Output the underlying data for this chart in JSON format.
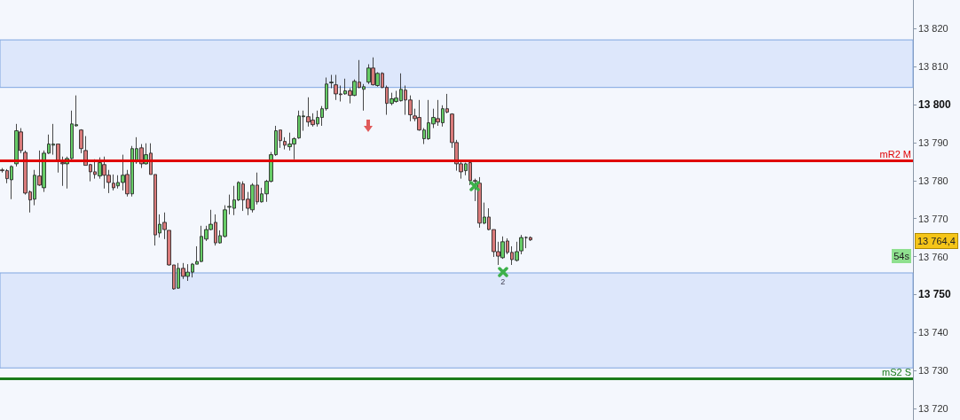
{
  "chart_data": {
    "type": "candlestick",
    "categories": [
      null,
      null,
      null,
      null,
      null,
      null,
      null,
      null,
      null,
      null,
      null,
      null,
      null,
      null,
      null,
      null,
      null,
      null,
      null,
      null,
      null,
      null,
      null,
      null,
      null,
      null,
      null,
      null,
      null,
      null,
      null,
      null,
      null,
      null,
      null,
      null,
      null,
      null,
      null,
      null,
      null,
      null,
      null,
      null,
      null,
      null,
      null,
      null,
      null,
      null,
      null,
      null,
      null,
      null,
      null,
      null,
      null,
      null,
      null,
      null,
      null,
      null,
      null,
      null,
      null,
      null,
      null,
      null,
      null,
      null,
      null,
      null,
      null,
      null,
      null,
      null,
      null,
      null,
      null,
      null,
      null,
      null,
      null,
      null,
      null,
      null,
      null,
      null,
      null,
      null,
      null,
      null,
      null,
      null,
      null,
      null,
      null,
      null,
      null,
      null,
      null,
      null,
      null,
      null,
      null,
      null,
      null,
      null,
      null,
      null,
      null,
      null,
      null,
      null,
      null,
      null,
      null,
      null,
      null,
      null,
      null,
      null,
      null,
      null,
      null,
      null,
      null,
      null,
      null,
      null,
      null,
      null,
      null,
      null,
      null,
      null,
      null,
      null,
      null,
      null,
      null,
      null,
      null,
      null,
      null,
      null,
      null,
      null,
      null,
      null,
      null,
      null,
      null,
      null,
      null,
      null,
      null,
      null,
      null,
      null,
      null,
      null,
      null,
      null,
      null,
      null,
      null,
      null,
      null,
      null,
      null,
      null,
      null,
      null,
      null,
      null,
      null,
      null,
      null,
      null,
      null,
      null,
      null,
      null,
      null,
      null,
      null,
      null,
      null,
      null,
      null,
      null,
      null,
      null,
      null,
      null,
      null
    ],
    "ohlc": [
      [
        13782.8,
        13783.3,
        13782.1,
        13782.6
      ],
      [
        13782.6,
        13783.0,
        13779.3,
        13780.5
      ],
      [
        13780.2,
        13784.0,
        13775.1,
        13783.7
      ],
      [
        13784.4,
        13794.9,
        13783.7,
        13793.1
      ],
      [
        13792.8,
        13793.8,
        13787.2,
        13787.9
      ],
      [
        13787.4,
        13787.9,
        13776.3,
        13776.7
      ],
      [
        13777.0,
        13777.4,
        13771.6,
        13774.9
      ],
      [
        13775.1,
        13782.8,
        13773.5,
        13781.4
      ],
      [
        13781.2,
        13787.9,
        13778.6,
        13778.8
      ],
      [
        13778.1,
        13787.9,
        13777.0,
        13787.2
      ],
      [
        13787.2,
        13792.1,
        13787.0,
        13789.6
      ],
      [
        13789.3,
        13794.9,
        13786.8,
        13789.6
      ],
      [
        13789.6,
        13789.6,
        13782.1,
        13785.1
      ],
      [
        13784.7,
        13786.3,
        13778.6,
        13784.4
      ],
      [
        13784.4,
        13786.3,
        13777.9,
        13785.8
      ],
      [
        13785.8,
        13798.4,
        13785.6,
        13794.9
      ],
      [
        13794.4,
        13802.4,
        13794.2,
        13794.7
      ],
      [
        13793.3,
        13793.5,
        13787.2,
        13788.4
      ],
      [
        13787.9,
        13791.7,
        13784.0,
        13784.0
      ],
      [
        13784.2,
        13784.4,
        13779.8,
        13782.3
      ],
      [
        13782.3,
        13785.6,
        13780.5,
        13781.6
      ],
      [
        13781.2,
        13786.1,
        13780.5,
        13784.7
      ],
      [
        13784.2,
        13786.3,
        13777.9,
        13781.4
      ],
      [
        13781.4,
        13782.8,
        13776.7,
        13779.5
      ],
      [
        13779.3,
        13781.6,
        13777.4,
        13778.1
      ],
      [
        13778.6,
        13781.4,
        13777.9,
        13779.5
      ],
      [
        13779.5,
        13786.8,
        13777.4,
        13781.4
      ],
      [
        13781.6,
        13782.8,
        13775.8,
        13776.5
      ],
      [
        13776.5,
        13789.1,
        13775.8,
        13788.4
      ],
      [
        13784.9,
        13791.4,
        13784.4,
        13788.4
      ],
      [
        13788.6,
        13789.6,
        13783.3,
        13784.4
      ],
      [
        13784.4,
        13789.8,
        13784.2,
        13786.8
      ],
      [
        13787.2,
        13789.8,
        13781.6,
        13781.6
      ],
      [
        13781.6,
        13781.6,
        13762.9,
        13765.7
      ],
      [
        13766.2,
        13771.1,
        13765.0,
        13768.5
      ],
      [
        13769.0,
        13771.6,
        13764.6,
        13767.1
      ],
      [
        13766.9,
        13766.9,
        13757.6,
        13757.8
      ],
      [
        13757.8,
        13757.8,
        13751.3,
        13751.5
      ],
      [
        13751.7,
        13758.3,
        13751.5,
        13756.9
      ],
      [
        13756.9,
        13758.3,
        13754.1,
        13754.8
      ],
      [
        13754.8,
        13758.0,
        13753.6,
        13755.9
      ],
      [
        13755.9,
        13758.3,
        13754.5,
        13758.0
      ],
      [
        13758.0,
        13762.7,
        13758.0,
        13758.7
      ],
      [
        13758.7,
        13768.1,
        13758.5,
        13765.3
      ],
      [
        13764.6,
        13768.1,
        13764.1,
        13767.1
      ],
      [
        13767.1,
        13772.3,
        13766.9,
        13768.5
      ],
      [
        13769.0,
        13771.1,
        13762.9,
        13763.6
      ],
      [
        13763.6,
        13766.9,
        13763.4,
        13765.5
      ],
      [
        13765.3,
        13773.5,
        13765.0,
        13772.3
      ],
      [
        13773.0,
        13776.3,
        13771.1,
        13773.2
      ],
      [
        13772.7,
        13778.6,
        13770.9,
        13774.9
      ],
      [
        13774.9,
        13779.8,
        13774.6,
        13779.5
      ],
      [
        13779.1,
        13779.8,
        13772.0,
        13774.9
      ],
      [
        13775.1,
        13777.0,
        13770.9,
        13772.7
      ],
      [
        13772.3,
        13779.3,
        13771.6,
        13778.8
      ],
      [
        13778.8,
        13782.1,
        13773.7,
        13774.4
      ],
      [
        13774.4,
        13778.1,
        13774.2,
        13776.5
      ],
      [
        13776.5,
        13780.2,
        13774.4,
        13779.8
      ],
      [
        13779.8,
        13787.5,
        13779.5,
        13786.8
      ],
      [
        13786.8,
        13794.4,
        13786.5,
        13793.1
      ],
      [
        13793.3,
        13793.3,
        13788.6,
        13790.5
      ],
      [
        13790.3,
        13791.4,
        13788.2,
        13789.3
      ],
      [
        13788.9,
        13792.6,
        13787.9,
        13789.6
      ],
      [
        13789.6,
        13791.4,
        13785.6,
        13791.0
      ],
      [
        13791.2,
        13798.4,
        13791.0,
        13797.0
      ],
      [
        13796.8,
        13798.4,
        13793.1,
        13797.0
      ],
      [
        13796.8,
        13801.9,
        13794.2,
        13795.4
      ],
      [
        13795.9,
        13797.7,
        13794.2,
        13794.7
      ],
      [
        13794.9,
        13798.4,
        13794.2,
        13796.6
      ],
      [
        13796.6,
        13799.6,
        13794.4,
        13798.9
      ],
      [
        13798.9,
        13807.1,
        13798.4,
        13805.4
      ],
      [
        13805.7,
        13807.8,
        13804.3,
        13805.9
      ],
      [
        13805.2,
        13807.8,
        13801.2,
        13802.8
      ],
      [
        13802.8,
        13805.0,
        13800.8,
        13802.6
      ],
      [
        13802.8,
        13806.8,
        13802.6,
        13803.6
      ],
      [
        13803.6,
        13804.3,
        13800.3,
        13802.4
      ],
      [
        13802.4,
        13806.6,
        13802.2,
        13806.1
      ],
      [
        13805.9,
        13811.7,
        13804.3,
        13804.5
      ],
      [
        13804.0,
        13805.4,
        13798.4,
        13804.7
      ],
      [
        13805.9,
        13810.6,
        13805.4,
        13809.6
      ],
      [
        13809.6,
        13812.4,
        13805.0,
        13805.2
      ],
      [
        13805.0,
        13808.5,
        13804.7,
        13808.2
      ],
      [
        13808.2,
        13808.5,
        13804.3,
        13804.5
      ],
      [
        13804.5,
        13805.0,
        13797.3,
        13800.3
      ],
      [
        13800.3,
        13803.1,
        13799.8,
        13801.5
      ],
      [
        13800.8,
        13803.6,
        13800.5,
        13801.7
      ],
      [
        13801.0,
        13808.2,
        13800.8,
        13804.0
      ],
      [
        13803.8,
        13805.0,
        13797.3,
        13801.2
      ],
      [
        13801.2,
        13802.4,
        13795.6,
        13797.3
      ],
      [
        13797.0,
        13798.9,
        13795.6,
        13796.3
      ],
      [
        13796.6,
        13801.2,
        13793.1,
        13793.3
      ],
      [
        13791.0,
        13793.8,
        13789.6,
        13793.3
      ],
      [
        13791.0,
        13801.2,
        13790.7,
        13795.2
      ],
      [
        13794.9,
        13798.9,
        13793.8,
        13796.6
      ],
      [
        13796.3,
        13801.2,
        13794.4,
        13795.4
      ],
      [
        13795.2,
        13799.8,
        13794.2,
        13798.9
      ],
      [
        13798.9,
        13802.8,
        13797.7,
        13798.0
      ],
      [
        13797.5,
        13797.7,
        13788.6,
        13790.0
      ],
      [
        13790.0,
        13790.7,
        13782.6,
        13784.4
      ],
      [
        13784.4,
        13784.9,
        13780.5,
        13782.3
      ],
      [
        13782.6,
        13784.7,
        13781.4,
        13784.4
      ],
      [
        13784.7,
        13784.9,
        13778.8,
        13780.0
      ],
      [
        13780.0,
        13780.5,
        13774.6,
        13779.8
      ],
      [
        13779.3,
        13780.9,
        13767.6,
        13768.8
      ],
      [
        13768.8,
        13774.2,
        13768.5,
        13770.4
      ],
      [
        13770.4,
        13772.7,
        13766.9,
        13767.1
      ],
      [
        13767.1,
        13767.1,
        13759.9,
        13761.3
      ],
      [
        13761.3,
        13763.9,
        13757.8,
        13760.1
      ],
      [
        13759.7,
        13765.3,
        13759.4,
        13763.9
      ],
      [
        13764.1,
        13764.8,
        13760.6,
        13761.1
      ],
      [
        13761.1,
        13762.7,
        13757.8,
        13759.2
      ],
      [
        13759.0,
        13763.9,
        13758.7,
        13761.3
      ],
      [
        13761.5,
        13765.7,
        13760.6,
        13765.0
      ],
      [
        13765.0,
        13765.3,
        13762.2,
        13765.0
      ],
      [
        13765.0,
        13765.3,
        13764.1,
        13764.4
      ],
      null,
      null,
      null,
      null,
      null,
      null,
      null,
      null,
      null,
      null,
      null,
      null,
      null,
      null,
      null,
      null,
      null,
      null,
      null,
      null,
      null,
      null,
      null,
      null,
      null,
      null,
      null,
      null,
      null,
      null,
      null,
      null,
      null,
      null,
      null,
      null,
      null,
      null,
      null,
      null,
      null,
      null,
      null,
      null,
      null,
      null,
      null,
      null,
      null,
      null,
      null,
      null,
      null,
      null,
      null,
      null,
      null,
      null,
      null,
      null,
      null,
      null,
      null,
      null,
      null,
      null,
      null,
      null,
      null,
      null,
      null,
      null,
      null,
      null,
      null,
      null,
      null,
      null,
      null,
      null,
      null,
      null
    ],
    "ylim": [
      13717,
      13827.5
    ],
    "yticks": [
      {
        "value": 13720,
        "label": "13 720"
      },
      {
        "value": 13730,
        "label": "13 730"
      },
      {
        "value": 13740,
        "label": "13 740"
      },
      {
        "value": 13750,
        "label": "13 750"
      },
      {
        "value": 13760,
        "label": "13 760"
      },
      {
        "value": 13770,
        "label": "13 770"
      },
      {
        "value": 13780,
        "label": "13 780"
      },
      {
        "value": 13790,
        "label": "13 790"
      },
      {
        "value": 13800,
        "label": "13 800"
      },
      {
        "value": 13810,
        "label": "13 810"
      },
      {
        "value": 13820,
        "label": "13 820"
      }
    ],
    "tick_labels": "y",
    "grid": false,
    "ref_lines": [
      {
        "axis": "y",
        "value": 13785.2,
        "label": "mR2 M",
        "color": "#e00000"
      },
      {
        "axis": "y",
        "value": 13727.9,
        "label": "mS2 S",
        "color": "#1a7a1a"
      }
    ],
    "bands": [
      {
        "axis": "y",
        "from": 13804.5,
        "to": 13817,
        "color": "#dde7fb"
      },
      {
        "axis": "y",
        "from": 13730.7,
        "to": 13755.7,
        "color": "#dde7fb"
      }
    ],
    "annotations": [
      "13 764,4",
      "54s",
      "2"
    ]
  }
}
